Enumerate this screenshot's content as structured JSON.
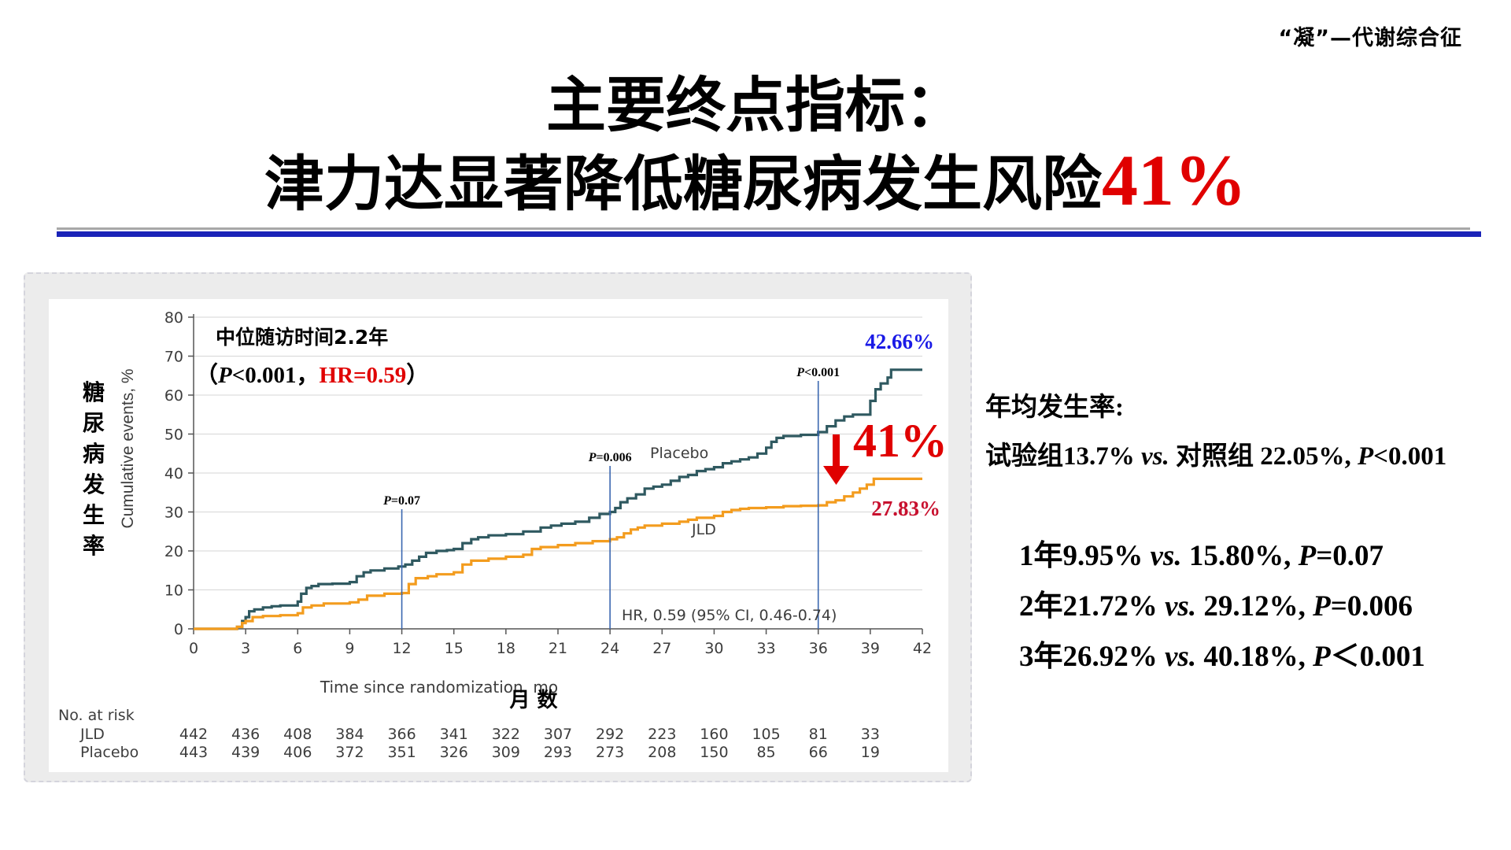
{
  "header": {
    "corner_tag": "“凝”—代谢综合征",
    "title_line1": "主要终点指标：",
    "title_line2_main": "津力达显著降低糖尿病发生风险",
    "title_line2_accent": "41%"
  },
  "colors": {
    "title_accent": "#e00000",
    "placebo": "#2f5960",
    "jld": "#f39c1e",
    "rule_blue": "#1a23b8",
    "blue_label": "#1a1ae6",
    "red_label": "#c8102e",
    "arrow": "#e00000"
  },
  "chart_data": {
    "type": "line",
    "xlabel": "Time since randomization, mo",
    "xlabel_cn": "月 数",
    "ylabel": "Cumulative events, %",
    "ylabel_cn": "糖尿病发生率",
    "xlim": [
      0,
      42
    ],
    "ylim": [
      0,
      80
    ],
    "x_ticks": [
      0,
      3,
      6,
      9,
      12,
      15,
      18,
      21,
      24,
      27,
      30,
      33,
      36,
      39,
      42
    ],
    "y_ticks": [
      0,
      10,
      20,
      30,
      40,
      50,
      60,
      70,
      80
    ],
    "grid": "horizontal",
    "series": [
      {
        "name": "Placebo",
        "color": "#2f5960",
        "x": [
          0,
          2.5,
          2.8,
          3,
          3.2,
          3.5,
          4,
          4.5,
          5,
          6,
          6.2,
          6.5,
          6.8,
          7.2,
          8,
          9,
          9.4,
          9.8,
          10.2,
          11,
          11.8,
          12.2,
          12.6,
          13,
          13.4,
          14,
          14.6,
          15,
          15.5,
          16,
          16.4,
          17,
          18,
          19,
          20,
          20.6,
          21.2,
          22,
          22.8,
          23.4,
          24,
          24.3,
          24.6,
          25,
          25.5,
          26,
          26.5,
          27,
          27.5,
          28,
          28.5,
          29,
          29.5,
          30,
          30.5,
          31,
          31.5,
          32,
          32.5,
          33,
          33.3,
          33.6,
          34,
          35,
          36,
          36.5,
          37,
          37.5,
          38,
          39,
          39.3,
          39.6,
          40,
          40.2,
          42
        ],
        "y": [
          0,
          0.5,
          2,
          3,
          4.5,
          5,
          5.5,
          5.8,
          6,
          7,
          9,
          10.5,
          11,
          11.5,
          11.6,
          12,
          13.5,
          14.5,
          15,
          15.5,
          16,
          16.5,
          17.5,
          18.5,
          19.5,
          20,
          20.2,
          20.5,
          22,
          23,
          23.5,
          24,
          24.3,
          25,
          26,
          26.5,
          27,
          27.5,
          28.5,
          29.5,
          30,
          31,
          32.5,
          33.5,
          34.5,
          36,
          36.5,
          37,
          38,
          39,
          39.5,
          40.5,
          41,
          41.5,
          42.5,
          43,
          43.5,
          44,
          45,
          46.5,
          48,
          49,
          49.5,
          49.8,
          50.5,
          52,
          53.5,
          54.5,
          55,
          58.5,
          61.5,
          63,
          64.5,
          66.5,
          66.5
        ]
      },
      {
        "name": "JLD",
        "color": "#f39c1e",
        "x": [
          0,
          2.5,
          2.8,
          3,
          3.4,
          4,
          5,
          6,
          6.3,
          6.8,
          7.5,
          9,
          9.5,
          10,
          11,
          12,
          12.4,
          12.8,
          13.5,
          14,
          15,
          15.5,
          16,
          17,
          18,
          19,
          19.5,
          20,
          21,
          22,
          23,
          24,
          24.4,
          24.8,
          25.2,
          25.6,
          26,
          27,
          28,
          28.5,
          29,
          30,
          30.5,
          31,
          31.5,
          32,
          33,
          34,
          35,
          36,
          36.5,
          37,
          37.5,
          38,
          38.4,
          38.8,
          39.2,
          42
        ],
        "y": [
          0,
          0.5,
          1.5,
          2,
          3,
          3.3,
          3.5,
          4,
          5.5,
          6,
          6.5,
          6.8,
          7.5,
          8.5,
          9,
          9.2,
          11.5,
          13,
          13.5,
          14,
          14.5,
          16.5,
          17.5,
          18,
          18.5,
          19,
          20.5,
          21,
          21.5,
          22,
          22.5,
          23,
          23.5,
          24.5,
          25.5,
          26,
          26.5,
          27,
          27.5,
          28,
          28.5,
          29,
          30,
          30.5,
          30.8,
          31,
          31.2,
          31.5,
          31.6,
          31.7,
          32.5,
          33,
          34,
          35,
          36,
          37,
          38.5,
          38.5
        ]
      }
    ],
    "vlines": [
      {
        "x": 12,
        "label_p": "P",
        "label_rest": "=0.07"
      },
      {
        "x": 24,
        "label_p": "P",
        "label_rest": "=0.006"
      },
      {
        "x": 36,
        "label_p": "P",
        "label_rest": "<0.001"
      }
    ],
    "annotations": {
      "median_followup": "中位随访时间2.2年",
      "overall_open": "（",
      "overall_p": "P",
      "overall_p_rest": "<0.001，",
      "overall_hr": "HR=0.59",
      "overall_close": "）",
      "hr_text": "HR, 0.59 (95% CI, 0.46-0.74)",
      "placebo_end": "42.66%",
      "jld_end": "27.83%",
      "reduction": "41%",
      "placebo_series_label": "Placebo",
      "jld_series_label": "JLD"
    },
    "risk_table": {
      "title": "No. at risk",
      "rows": [
        {
          "label": "JLD",
          "values": [
            "442",
            "436",
            "408",
            "384",
            "366",
            "341",
            "322",
            "307",
            "292",
            "223",
            "160",
            "105",
            "81",
            "33"
          ]
        },
        {
          "label": "Placebo",
          "values": [
            "443",
            "439",
            "406",
            "372",
            "351",
            "326",
            "309",
            "293",
            "273",
            "208",
            "150",
            "85",
            "66",
            "19"
          ]
        }
      ]
    }
  },
  "stats": {
    "heading": "年均发生率:",
    "line_pre": "试验组13.7% ",
    "line_vs": "vs.",
    "line_mid": " 对照组 22.05%, ",
    "line_p": "P",
    "line_post": "<0.001",
    "yearly": [
      {
        "pre": "1年9.95% ",
        "vs": "vs.",
        "mid": " 15.80%, ",
        "p": "P",
        "post": "=0.07"
      },
      {
        "pre": "2年21.72% ",
        "vs": "vs.",
        "mid": " 29.12%, ",
        "p": "P",
        "post": "=0.006"
      },
      {
        "pre": "3年26.92% ",
        "vs": "vs.",
        "mid": " 40.18%, ",
        "p": "P",
        "post": "＜0.001"
      }
    ]
  }
}
